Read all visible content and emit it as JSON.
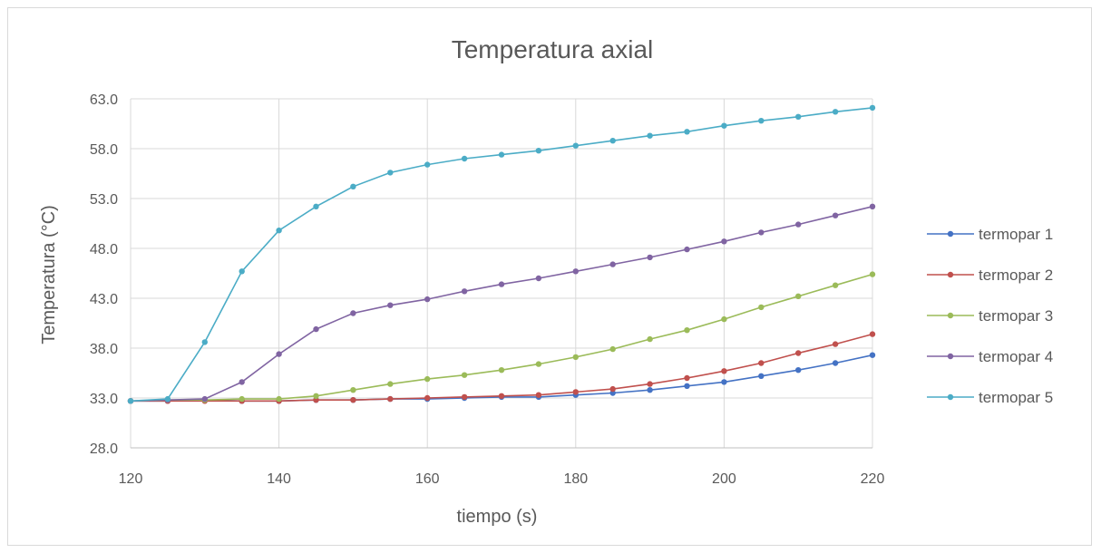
{
  "chart_data": {
    "type": "line",
    "title": "Temperatura axial",
    "xlabel": "tiempo (s)",
    "ylabel": "Temperatura (°C)",
    "xlim": [
      120,
      220
    ],
    "ylim": [
      28,
      63
    ],
    "xticks": [
      120,
      140,
      160,
      180,
      200,
      220
    ],
    "yticks": [
      28,
      33,
      38,
      43,
      48,
      53,
      58,
      63
    ],
    "xtick_labels": [
      "120",
      "140",
      "160",
      "180",
      "200",
      "220"
    ],
    "ytick_labels": [
      "28.0",
      "33.0",
      "38.0",
      "43.0",
      "48.0",
      "53.0",
      "58.0",
      "63.0"
    ],
    "grid": true,
    "legend_position": "right",
    "x": [
      120,
      125,
      130,
      135,
      140,
      145,
      150,
      155,
      160,
      165,
      170,
      175,
      180,
      185,
      190,
      195,
      200,
      205,
      210,
      215,
      220
    ],
    "series": [
      {
        "name": "termopar 1",
        "color": "#4472c4",
        "values": [
          32.7,
          32.7,
          32.8,
          32.7,
          32.7,
          32.8,
          32.8,
          32.9,
          32.9,
          33.0,
          33.1,
          33.1,
          33.3,
          33.5,
          33.8,
          34.2,
          34.6,
          35.2,
          35.8,
          36.5,
          37.3
        ]
      },
      {
        "name": "termopar 2",
        "color": "#c0504d",
        "values": [
          32.7,
          32.7,
          32.7,
          32.7,
          32.7,
          32.8,
          32.8,
          32.9,
          33.0,
          33.1,
          33.2,
          33.3,
          33.6,
          33.9,
          34.4,
          35.0,
          35.7,
          36.5,
          37.5,
          38.4,
          39.4
        ]
      },
      {
        "name": "termopar 3",
        "color": "#9bbb59",
        "values": [
          32.7,
          32.8,
          32.8,
          32.9,
          32.9,
          33.2,
          33.8,
          34.4,
          34.9,
          35.3,
          35.8,
          36.4,
          37.1,
          37.9,
          38.9,
          39.8,
          40.9,
          42.1,
          43.2,
          44.3,
          45.4
        ]
      },
      {
        "name": "termopar 4",
        "color": "#8064a2",
        "values": [
          32.7,
          32.8,
          32.9,
          34.6,
          37.4,
          39.9,
          41.5,
          42.3,
          42.9,
          43.7,
          44.4,
          45.0,
          45.7,
          46.4,
          47.1,
          47.9,
          48.7,
          49.6,
          50.4,
          51.3,
          52.2
        ]
      },
      {
        "name": "termopar 5",
        "color": "#4bacc6",
        "values": [
          32.7,
          32.9,
          38.6,
          45.7,
          49.8,
          52.2,
          54.2,
          55.6,
          56.4,
          57.0,
          57.4,
          57.8,
          58.3,
          58.8,
          59.3,
          59.7,
          60.3,
          60.8,
          61.2,
          61.7,
          62.1
        ]
      }
    ]
  }
}
